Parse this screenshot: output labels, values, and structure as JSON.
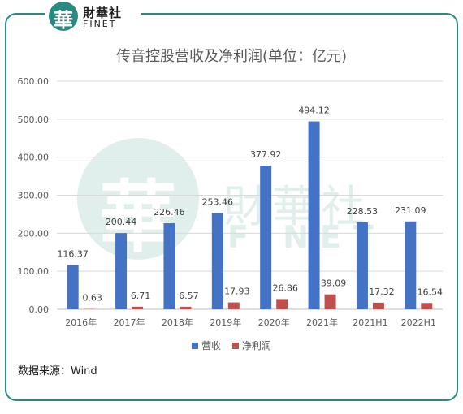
{
  "logo": {
    "mark_char": "華",
    "name_cn": "財華社",
    "name_en": "FINET"
  },
  "watermark": {
    "mark_char": "華",
    "name_cn": "財華社",
    "name_en": "FINET"
  },
  "source": "数据来源：Wind",
  "colors": {
    "border": "#2a8a82",
    "revenue": "#4472c4",
    "net_profit": "#c0504d"
  },
  "chart_data": {
    "type": "bar",
    "title": "传音控股营收及净利润(单位：亿元)",
    "categories": [
      "2016年",
      "2017年",
      "2018年",
      "2019年",
      "2020年",
      "2021年",
      "2021H1",
      "2022H1"
    ],
    "series": [
      {
        "name": "营收",
        "values": [
          116.37,
          200.44,
          226.46,
          253.46,
          377.92,
          494.12,
          228.53,
          231.09
        ],
        "labels": [
          "116.37",
          "200.44",
          "226.46",
          "253.46",
          "377.92",
          "494.12",
          "228.53",
          "231.09"
        ]
      },
      {
        "name": "净利润",
        "values": [
          0.63,
          6.71,
          6.57,
          17.93,
          26.86,
          39.09,
          17.32,
          16.54
        ],
        "labels": [
          "0.63",
          "6.71",
          "6.57",
          "17.93",
          "26.86",
          "39.09",
          "17.32",
          "16.54"
        ]
      }
    ],
    "ylim": [
      0,
      600
    ],
    "yticks": [
      0,
      100,
      200,
      300,
      400,
      500,
      600
    ],
    "ytick_labels": [
      "0.00",
      "100.00",
      "200.00",
      "300.00",
      "400.00",
      "500.00",
      "600.00"
    ],
    "grid": true,
    "legend": "bottom"
  }
}
